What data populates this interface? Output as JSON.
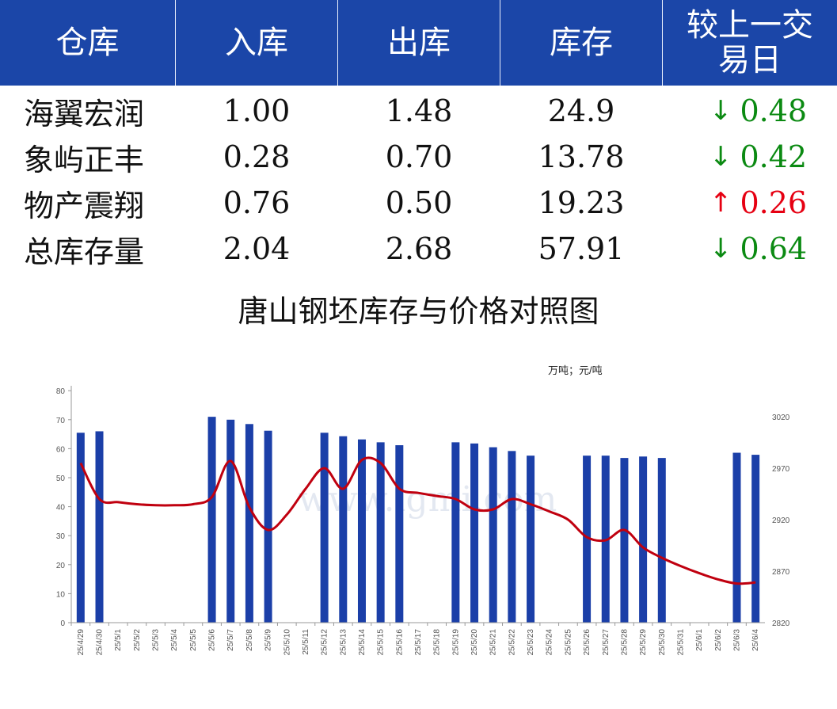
{
  "table": {
    "headers": [
      "仓库",
      "入库",
      "出库",
      "库存",
      "较上一交",
      "易日"
    ],
    "rows": [
      {
        "name": "海翼宏润",
        "in": "1.00",
        "out": "1.48",
        "stock": "24.9",
        "dir": "down",
        "arrow": "↓",
        "change": "0.48"
      },
      {
        "name": "象屿正丰",
        "in": "0.28",
        "out": "0.70",
        "stock": "13.78",
        "dir": "down",
        "arrow": "↓",
        "change": "0.42"
      },
      {
        "name": "物产震翔",
        "in": "0.76",
        "out": "0.50",
        "stock": "19.23",
        "dir": "up",
        "arrow": "↑",
        "change": "0.26"
      },
      {
        "name": "总库存量",
        "in": "2.04",
        "out": "2.68",
        "stock": "57.91",
        "dir": "down",
        "arrow": "↓",
        "change": "0.64"
      }
    ],
    "colors": {
      "header_bg": "#1b46a8",
      "down": "#0b8a12",
      "up": "#e60012"
    }
  },
  "chart_data": {
    "type": "bar",
    "title": "唐山钢坯库存与价格对照图",
    "unit_label": "万吨；元/吨",
    "watermark": "www.lgmi.com",
    "categories": [
      "25/4/29",
      "25/4/30",
      "25/5/1",
      "25/5/2",
      "25/5/3",
      "25/5/4",
      "25/5/5",
      "25/5/6",
      "25/5/7",
      "25/5/8",
      "25/5/9",
      "25/5/10",
      "25/5/11",
      "25/5/12",
      "25/5/13",
      "25/5/14",
      "25/5/15",
      "25/5/16",
      "25/5/17",
      "25/5/18",
      "25/5/19",
      "25/5/20",
      "25/5/21",
      "25/5/22",
      "25/5/23",
      "25/5/24",
      "25/5/25",
      "25/5/26",
      "25/5/27",
      "25/5/28",
      "25/5/29",
      "25/5/30",
      "25/5/31",
      "25/6/1",
      "25/6/2",
      "25/6/3",
      "25/6/4"
    ],
    "y_left": {
      "min": 0,
      "max": 80,
      "ticks": [
        0,
        10,
        20,
        30,
        40,
        50,
        60,
        70,
        80
      ]
    },
    "y_right": {
      "min": 2820,
      "max": 3040,
      "ticks": [
        2820,
        2870,
        2920,
        2970,
        3020
      ]
    },
    "series": [
      {
        "kind": "bar",
        "axis": "left",
        "color": "#1b3fa8",
        "values": [
          65.5,
          66,
          null,
          null,
          null,
          null,
          null,
          71,
          70,
          68.5,
          66.2,
          null,
          null,
          65.5,
          64.3,
          63.2,
          62.2,
          61.2,
          null,
          null,
          62.2,
          61.8,
          60.5,
          59.2,
          57.6,
          null,
          null,
          57.6,
          57.6,
          56.8,
          57.3,
          56.8,
          null,
          null,
          null,
          58.6,
          57.9
        ]
      },
      {
        "kind": "line",
        "axis": "right",
        "color": "#c0000f",
        "values": [
          2975,
          2940,
          2937,
          2935,
          2934,
          2934,
          2935,
          2942,
          2977,
          2932,
          2910,
          2925,
          2950,
          2970,
          2950,
          2978,
          2975,
          2950,
          2946,
          2943,
          2940,
          2930,
          2930,
          2940,
          2935,
          2928,
          2920,
          2903,
          2900,
          2910,
          2893,
          2883,
          2875,
          2868,
          2862,
          2858,
          2859
        ]
      }
    ],
    "grid": false
  }
}
